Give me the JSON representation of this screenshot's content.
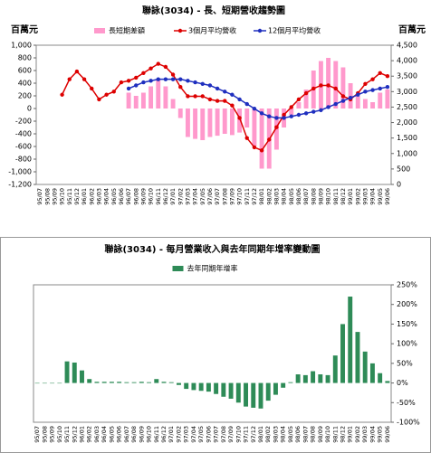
{
  "chart_data": [
    {
      "type": "combo",
      "title": "聯詠(3034) - 長、短期營收趨勢圖",
      "y_label": "百萬元",
      "y2_label": "百萬元",
      "categories": [
        "95/07",
        "95/08",
        "95/09",
        "95/10",
        "95/11",
        "95/12",
        "96/01",
        "96/02",
        "96/03",
        "96/04",
        "96/05",
        "96/06",
        "96/07",
        "96/08",
        "96/09",
        "96/10",
        "96/11",
        "96/12",
        "97/01",
        "97/02",
        "97/03",
        "97/04",
        "97/05",
        "97/06",
        "97/07",
        "97/08",
        "97/09",
        "97/10",
        "97/11",
        "97/12",
        "98/01",
        "98/02",
        "98/03",
        "98/04",
        "98/05",
        "98/06",
        "98/07",
        "98/08",
        "98/09",
        "98/10",
        "98/11",
        "98/12",
        "99/01",
        "99/02",
        "99/03",
        "99/04",
        "99/05",
        "99/06"
      ],
      "series": [
        {
          "name": "長短期差額",
          "kind": "bar",
          "color": "#ff99cc",
          "axis": "y",
          "values": [
            null,
            null,
            null,
            null,
            null,
            null,
            null,
            null,
            null,
            null,
            null,
            null,
            250,
            200,
            250,
            350,
            450,
            350,
            150,
            -150,
            -450,
            -480,
            -500,
            -450,
            -430,
            -400,
            -420,
            -380,
            -300,
            -600,
            -950,
            -950,
            -650,
            -300,
            -100,
            100,
            300,
            600,
            750,
            800,
            750,
            650,
            400,
            200,
            150,
            100,
            250,
            300
          ]
        },
        {
          "name": "3個月平均營收",
          "kind": "line",
          "color": "#dd0000",
          "axis": "y2",
          "values": [
            null,
            null,
            null,
            2900,
            3400,
            3650,
            3400,
            3100,
            2750,
            2900,
            3000,
            3300,
            3350,
            3450,
            3600,
            3750,
            3900,
            3800,
            3550,
            3150,
            2850,
            2850,
            2850,
            2750,
            2700,
            2700,
            2550,
            2150,
            1500,
            1200,
            1100,
            1450,
            1850,
            2250,
            2500,
            2750,
            2950,
            3100,
            3200,
            3200,
            3100,
            2850,
            2750,
            2950,
            3250,
            3400,
            3600,
            3500
          ]
        },
        {
          "name": "12個月平均營收",
          "kind": "line",
          "color": "#1f2fbf",
          "axis": "y2",
          "values": [
            null,
            null,
            null,
            null,
            null,
            null,
            null,
            null,
            null,
            null,
            null,
            null,
            3100,
            3200,
            3300,
            3350,
            3400,
            3400,
            3400,
            3400,
            3350,
            3300,
            3250,
            3200,
            3100,
            3000,
            2900,
            2750,
            2600,
            2450,
            2300,
            2200,
            2150,
            2150,
            2200,
            2250,
            2300,
            2350,
            2400,
            2500,
            2600,
            2700,
            2800,
            2900,
            3000,
            3050,
            3100,
            3150
          ]
        }
      ],
      "ylim": [
        -1200,
        1000
      ],
      "yticks": [
        {
          "value": 1000,
          "label": "1,000"
        },
        800,
        600,
        400,
        200,
        0,
        -200,
        -400,
        -600,
        -800,
        {
          "value": -1000,
          "label": "-1,000"
        },
        {
          "value": -1200,
          "label": "-1,200"
        }
      ],
      "y2lim": [
        0,
        4500
      ],
      "y2ticks": [
        {
          "value": 4500,
          "label": "4,500"
        },
        {
          "value": 4000,
          "label": "4,000"
        },
        {
          "value": 3500,
          "label": "3,500"
        },
        {
          "value": 3000,
          "label": "3,000"
        },
        {
          "value": 2500,
          "label": "2,500"
        },
        {
          "value": 2000,
          "label": "2,000"
        },
        {
          "value": 1500,
          "label": "1,500"
        },
        {
          "value": 1000,
          "label": "1,000"
        },
        500,
        0
      ],
      "grid": false
    },
    {
      "type": "bar",
      "title": "聯詠(3034) - 每月營業收入與去年同期年增率變動圖",
      "categories": [
        "95/07",
        "95/08",
        "95/09",
        "95/10",
        "95/11",
        "95/12",
        "96/01",
        "96/02",
        "96/03",
        "96/04",
        "96/05",
        "96/06",
        "96/07",
        "96/08",
        "96/09",
        "96/10",
        "96/11",
        "96/12",
        "97/01",
        "97/02",
        "97/03",
        "97/04",
        "97/05",
        "97/06",
        "97/07",
        "97/08",
        "97/09",
        "97/10",
        "97/11",
        "97/12",
        "98/01",
        "98/02",
        "98/03",
        "98/04",
        "98/05",
        "98/06",
        "98/07",
        "98/08",
        "98/09",
        "98/10",
        "98/11",
        "98/12",
        "99/01",
        "99/02",
        "99/03",
        "99/04",
        "99/05",
        "99/06"
      ],
      "series": [
        {
          "name": "去年同期年增率",
          "kind": "bar",
          "color": "#2e8b57",
          "axis": "y",
          "values": [
            0,
            0,
            0,
            0,
            55,
            52,
            32,
            10,
            3,
            3,
            3,
            3,
            2,
            2,
            3,
            2,
            10,
            3,
            2,
            -5,
            -15,
            -18,
            -20,
            -22,
            -28,
            -35,
            -40,
            -50,
            -60,
            -63,
            -65,
            -45,
            -30,
            -12,
            2,
            22,
            20,
            30,
            22,
            20,
            70,
            150,
            220,
            130,
            80,
            50,
            25,
            5
          ]
        }
      ],
      "ylim": [
        -100,
        250
      ],
      "yticks": [
        {
          "value": 250,
          "label": "250%"
        },
        {
          "value": 200,
          "label": "200%"
        },
        {
          "value": 150,
          "label": "150%"
        },
        {
          "value": 100,
          "label": "100%"
        },
        {
          "value": 50,
          "label": "50%"
        },
        {
          "value": 0,
          "label": "0%"
        },
        {
          "value": -50,
          "label": "-50%"
        },
        {
          "value": -100,
          "label": "-100%"
        }
      ],
      "y_axis_position": "right",
      "grid": false
    }
  ]
}
